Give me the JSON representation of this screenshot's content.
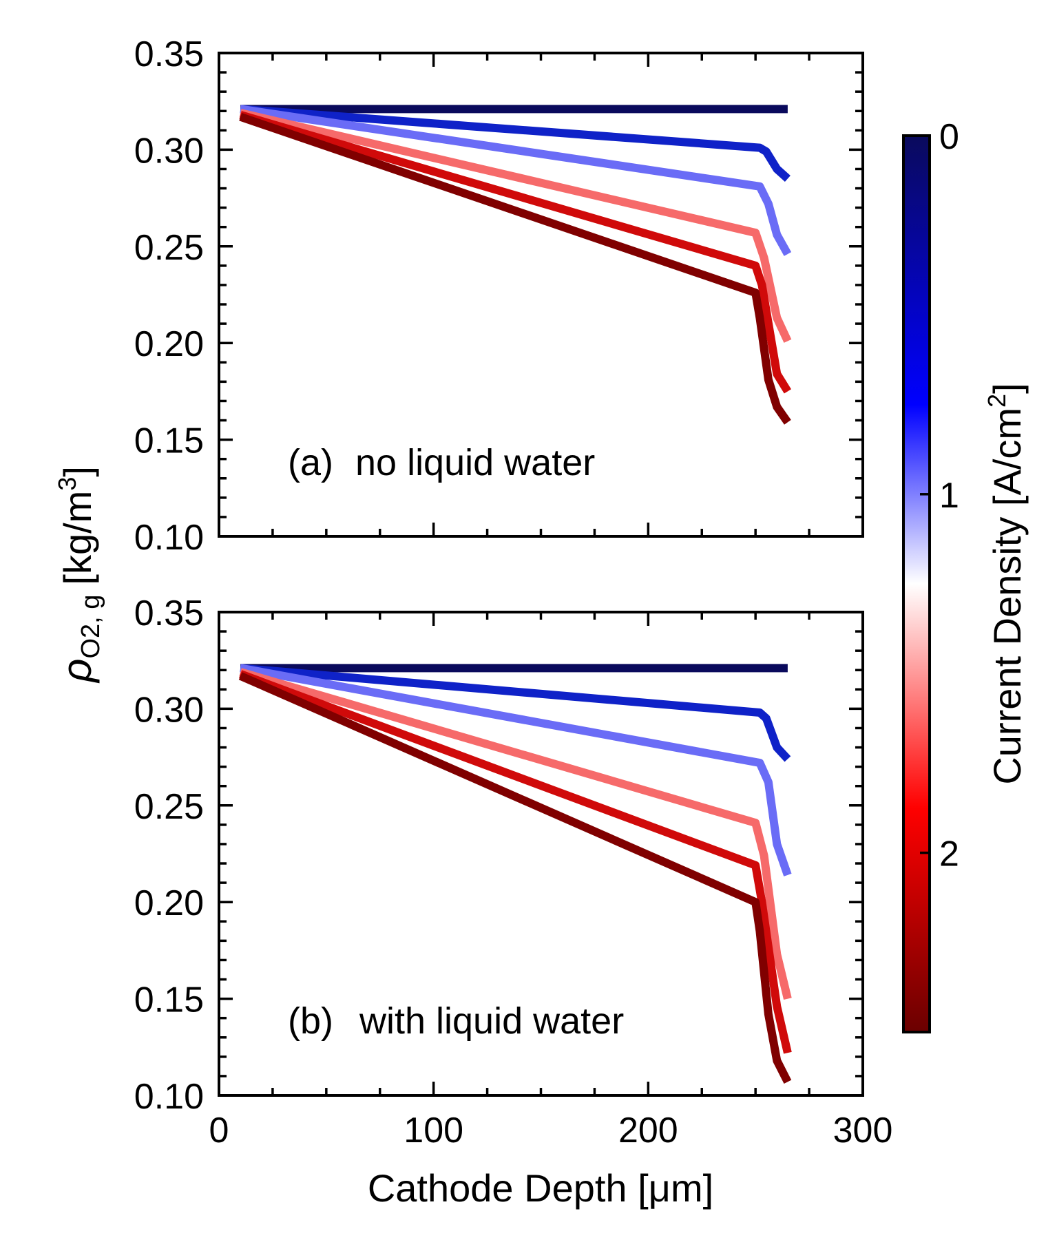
{
  "chart_data": [
    {
      "type": "line",
      "panel": "a",
      "panel_label": "(a)",
      "annotation": "no liquid water",
      "xlim": [
        0,
        300
      ],
      "ylim": [
        0.1,
        0.35
      ],
      "xticks": [
        0,
        100,
        200,
        300
      ],
      "yticks": [
        "0.10",
        "0.15",
        "0.20",
        "0.25",
        "0.30",
        "0.35"
      ],
      "grid": false,
      "series": [
        {
          "color": "#0a0a5c",
          "x": [
            10,
            265
          ],
          "y": [
            0.321,
            0.321
          ]
        },
        {
          "color": "#0f22c8",
          "x": [
            10,
            252,
            255,
            260,
            265
          ],
          "y": [
            0.321,
            0.301,
            0.299,
            0.29,
            0.285
          ]
        },
        {
          "color": "#6a6cf6",
          "x": [
            10,
            252,
            256,
            260,
            265
          ],
          "y": [
            0.321,
            0.281,
            0.272,
            0.256,
            0.246
          ]
        },
        {
          "color": "#f66a6a",
          "x": [
            10,
            250,
            254,
            260,
            265
          ],
          "y": [
            0.319,
            0.257,
            0.244,
            0.213,
            0.201
          ]
        },
        {
          "color": "#d00a0a",
          "x": [
            10,
            250,
            253,
            260,
            265
          ],
          "y": [
            0.318,
            0.24,
            0.23,
            0.184,
            0.175
          ]
        },
        {
          "color": "#800000",
          "x": [
            10,
            250,
            252,
            256,
            260,
            265
          ],
          "y": [
            0.317,
            0.226,
            0.213,
            0.181,
            0.167,
            0.159
          ]
        }
      ]
    },
    {
      "type": "line",
      "panel": "b",
      "panel_label": "(b)",
      "annotation": "with liquid water",
      "xlabel": "Cathode Depth [μm]",
      "xlim": [
        0,
        300
      ],
      "ylim": [
        0.1,
        0.35
      ],
      "xticks": [
        "0",
        "100",
        "200",
        "300"
      ],
      "yticks": [
        "0.10",
        "0.15",
        "0.20",
        "0.25",
        "0.30",
        "0.35"
      ],
      "grid": false,
      "series": [
        {
          "color": "#0a0a5c",
          "x": [
            10,
            265
          ],
          "y": [
            0.321,
            0.321
          ]
        },
        {
          "color": "#0f22c8",
          "x": [
            10,
            252,
            255,
            260,
            265
          ],
          "y": [
            0.321,
            0.298,
            0.295,
            0.28,
            0.274
          ]
        },
        {
          "color": "#6a6cf6",
          "x": [
            10,
            252,
            256,
            260,
            265
          ],
          "y": [
            0.321,
            0.272,
            0.262,
            0.23,
            0.214
          ]
        },
        {
          "color": "#f66a6a",
          "x": [
            10,
            250,
            254,
            260,
            265
          ],
          "y": [
            0.319,
            0.241,
            0.224,
            0.173,
            0.15
          ]
        },
        {
          "color": "#d00a0a",
          "x": [
            10,
            250,
            253,
            260,
            265
          ],
          "y": [
            0.318,
            0.219,
            0.2,
            0.146,
            0.122
          ]
        },
        {
          "color": "#800000",
          "x": [
            10,
            250,
            252,
            256,
            260,
            265
          ],
          "y": [
            0.317,
            0.2,
            0.185,
            0.142,
            0.118,
            0.107
          ]
        }
      ]
    }
  ],
  "y_axis_label": {
    "symbol": "ρ",
    "subscript": "O2, g",
    "unit_open": "[kg/m",
    "unit_sup": "3",
    "unit_close": "]"
  },
  "colorbar": {
    "label_text": "Current Density [A/cm",
    "label_sup": "2",
    "label_close": "]",
    "range": [
      0,
      2.5
    ],
    "ticks": [
      "0",
      "1",
      "2"
    ],
    "colors": [
      "#0a0a5c",
      "#0000ff",
      "#ffffff",
      "#ff0000",
      "#6b0000"
    ]
  }
}
